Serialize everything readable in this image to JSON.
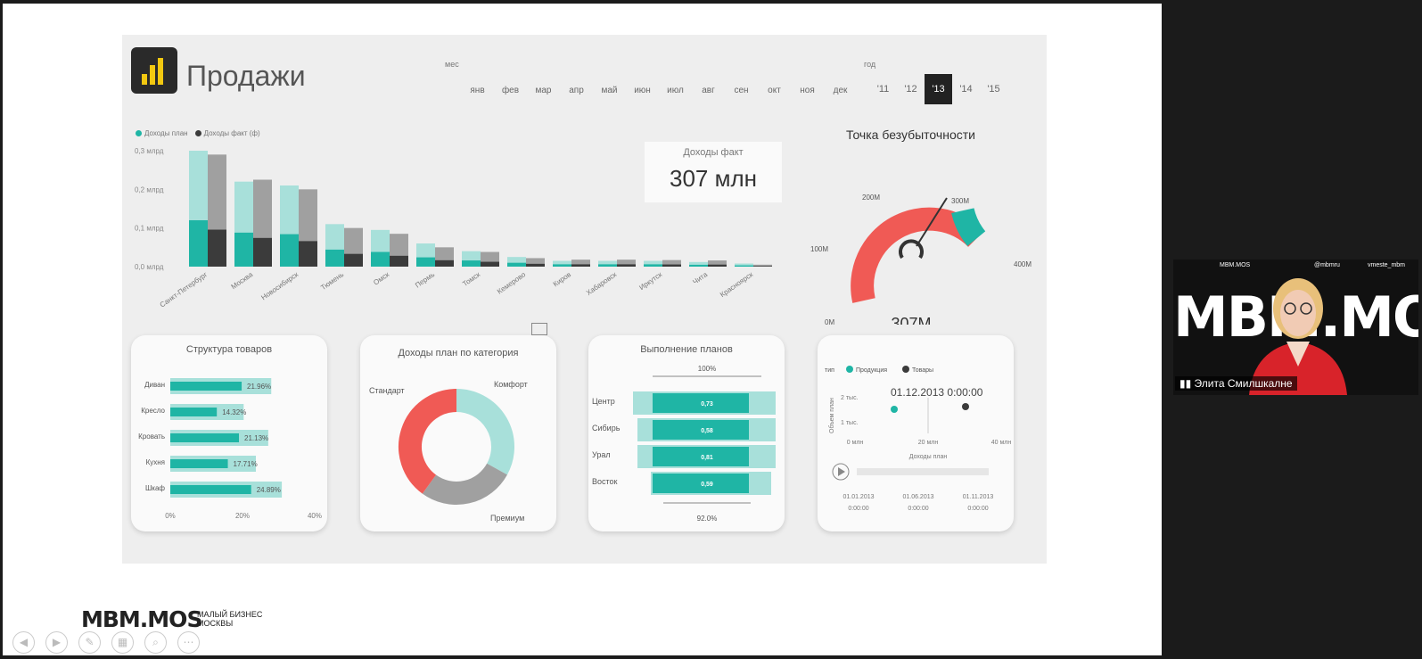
{
  "dashboard": {
    "title": "Продажи",
    "month_label": "мес",
    "months": [
      "янв",
      "фев",
      "мар",
      "апр",
      "май",
      "июн",
      "июл",
      "авг",
      "сен",
      "окт",
      "ноя",
      "дек"
    ],
    "year_label": "год",
    "years": [
      "'11",
      "'12",
      "'13",
      "'14",
      "'15"
    ],
    "selected_year": "'13",
    "legend": [
      "Доходы план",
      "Доходы факт (ф)"
    ],
    "kpi_title": "Доходы факт",
    "kpi_value": "307 млн",
    "gauge_title": "Точка безубыточности",
    "gauge_value": "307M",
    "gauge_ticks": [
      "0M",
      "100M",
      "200M",
      "300M",
      "400M"
    ]
  },
  "chart_data": [
    {
      "type": "bar",
      "title": "",
      "categories": [
        "Санкт-Петербург",
        "Москва",
        "Новосибирск",
        "Тюмень",
        "Омск",
        "Пермь",
        "Томск",
        "Кемерово",
        "Киров",
        "Хабаровск",
        "Иркутск",
        "Чита",
        "Красноярск"
      ],
      "y_ticks": [
        "0,3 млрд",
        "0,2 млрд",
        "0,1 млрд",
        "0,0 млрд"
      ],
      "ylim": [
        0,
        0.3
      ],
      "series": [
        {
          "name": "Доходы план",
          "values": [
            0.3,
            0.22,
            0.21,
            0.11,
            0.095,
            0.06,
            0.04,
            0.025,
            0.015,
            0.015,
            0.015,
            0.012,
            0.008
          ]
        },
        {
          "name": "Доходы факт (ф)",
          "values": [
            0.29,
            0.225,
            0.2,
            0.1,
            0.085,
            0.05,
            0.038,
            0.022,
            0.018,
            0.018,
            0.017,
            0.016,
            0.005
          ]
        }
      ]
    },
    {
      "type": "bar",
      "title": "Структура товаров",
      "categories": [
        "Диван",
        "Кресло",
        "Кровать",
        "Кухня",
        "Шкаф"
      ],
      "values": [
        21.96,
        14.32,
        21.13,
        17.71,
        24.89
      ],
      "value_labels": [
        "21.96%",
        "14.32%",
        "21.13%",
        "17.71%",
        "24.89%"
      ],
      "x_ticks": [
        "0%",
        "20%",
        "40%"
      ],
      "xlim": [
        0,
        40
      ]
    },
    {
      "type": "pie",
      "title": "Доходы план по категория",
      "labels": [
        "Комфорт",
        "Премиум",
        "Стандарт"
      ],
      "values": [
        33,
        27,
        40
      ]
    },
    {
      "type": "bar",
      "title": "Выполнение планов",
      "categories": [
        "Центр",
        "Сибирь",
        "Урал",
        "Восток"
      ],
      "value_labels": [
        "0,73",
        "0,58",
        "0,81",
        "0,59"
      ],
      "top_label": "100%",
      "bottom_label": "92.0%"
    },
    {
      "type": "scatter",
      "title": "",
      "legend_label": "тип",
      "legend": [
        "Продукция",
        "Товары"
      ],
      "date_label": "01.12.2013 0:00:00",
      "ylabel": "Объем план",
      "y_ticks": [
        "2 тыс.",
        "1 тыс."
      ],
      "xlabel": "Доходы план",
      "x_ticks": [
        "0 млн",
        "20 млн",
        "40 млн"
      ],
      "timeline": [
        [
          "01.01.2013",
          "0:00:00"
        ],
        [
          "01.06.2013",
          "0:00:00"
        ],
        [
          "01.11.2013",
          "0:00:00"
        ]
      ]
    }
  ],
  "presenter": {
    "name": "Элита Смилшкалне",
    "brand": "MBM.MOS",
    "handle1": "@mbmru",
    "handle2": "vmeste_mbm"
  },
  "footer": {
    "brand": "MBM.MOS",
    "subtitle": "МАЛЫЙ БИЗНЕС МОСКВЫ"
  },
  "colors": {
    "teal": "#1fb5a5",
    "teal_light": "#a8e0da",
    "grey": "#a0a0a0",
    "dark": "#3b3b3b",
    "red": "#f05a55"
  }
}
